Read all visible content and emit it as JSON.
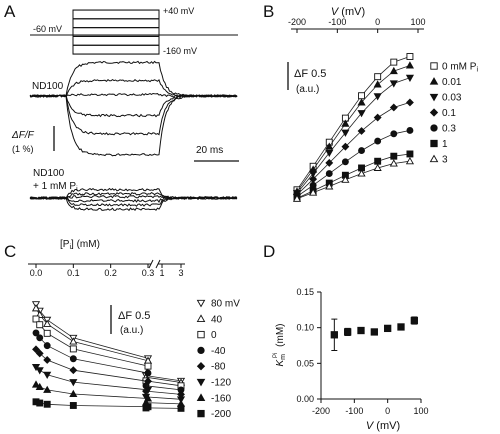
{
  "panel_letters": [
    "A",
    "B",
    "C",
    "D"
  ],
  "panel_a": {
    "protocol": {
      "holding_label": "-60 mV",
      "top_label": "+40 mV",
      "bottom_label": "-160 mV",
      "n_steps": 6
    },
    "trace_labels": {
      "control": "ND100",
      "pi_line1": "ND100",
      "pi_line2": "+ 1 mM P",
      "pi_sub": "i"
    },
    "scale": {
      "yl1": "ΔF/F",
      "yl2": "(1 %)",
      "time": "20 ms"
    },
    "control_levels_pct": [
      1.2,
      0.55,
      0.05,
      -0.7,
      -1.35,
      -2.1
    ],
    "pi_levels_pct": [
      0.3,
      0.15,
      0.05,
      -0.1,
      -0.25,
      -0.4
    ]
  },
  "chart_data": [
    {
      "type": "line",
      "panel": "B",
      "x_axis_label": "V",
      "x_axis_unit": "(mV)",
      "x_ticks": [
        -200,
        -100,
        0,
        100
      ],
      "xlim": [
        -200,
        100
      ],
      "scale_bar": {
        "label": "ΔF 0.5",
        "unit": "(a.u.)",
        "value": 0.5
      },
      "legend_title": "",
      "x": [
        -200,
        -160,
        -120,
        -80,
        -40,
        0,
        40,
        80
      ],
      "series": [
        {
          "name": "0 mM P",
          "sub": "i",
          "marker": "square-open",
          "values": [
            0.2,
            0.62,
            1.05,
            1.48,
            1.88,
            2.22,
            2.48,
            2.58
          ]
        },
        {
          "name": "0.01",
          "marker": "triangle-up",
          "values": [
            0.17,
            0.56,
            0.97,
            1.38,
            1.76,
            2.08,
            2.32,
            2.42
          ]
        },
        {
          "name": "0.03",
          "marker": "triangle-down",
          "values": [
            0.14,
            0.49,
            0.86,
            1.22,
            1.57,
            1.87,
            2.1,
            2.2
          ]
        },
        {
          "name": "0.1",
          "marker": "diamond",
          "values": [
            0.11,
            0.39,
            0.68,
            0.97,
            1.25,
            1.49,
            1.67,
            1.76
          ]
        },
        {
          "name": "0.3",
          "marker": "circle",
          "values": [
            0.08,
            0.28,
            0.49,
            0.7,
            0.9,
            1.07,
            1.2,
            1.26
          ]
        },
        {
          "name": "1",
          "marker": "square",
          "values": [
            0.05,
            0.18,
            0.32,
            0.46,
            0.59,
            0.71,
            0.8,
            0.84
          ]
        },
        {
          "name": "3",
          "marker": "triangle-up-open",
          "values": [
            0.04,
            0.15,
            0.26,
            0.38,
            0.49,
            0.59,
            0.67,
            0.71
          ]
        }
      ]
    },
    {
      "type": "scatter",
      "panel": "C",
      "x_axis_label": "[P",
      "x_axis_sub": "i",
      "x_axis_unit": "] (mM)",
      "x_ticks": [
        "0.0",
        "0.1",
        "0.2",
        "0.3",
        "1",
        "3"
      ],
      "x_break_after": 0.3,
      "scale_bar": {
        "label": "ΔF 0.5",
        "unit": "(a.u.)",
        "value": 0.5
      },
      "x": [
        0,
        0.01,
        0.03,
        0.1,
        0.3,
        1,
        3
      ],
      "series": [
        {
          "name": "80 mV",
          "marker": "triangle-down-open",
          "values": [
            2.58,
            2.42,
            2.2,
            1.76,
            1.26,
            0.84,
            0.71
          ]
        },
        {
          "name": "40",
          "marker": "triangle-up-open",
          "values": [
            2.48,
            2.32,
            2.1,
            1.67,
            1.2,
            0.8,
            0.67
          ]
        },
        {
          "name": "0",
          "marker": "square-open",
          "values": [
            2.22,
            2.08,
            1.87,
            1.49,
            1.07,
            0.71,
            0.59
          ]
        },
        {
          "name": "-40",
          "marker": "circle",
          "values": [
            1.88,
            1.76,
            1.57,
            1.25,
            0.9,
            0.59,
            0.49
          ]
        },
        {
          "name": "-80",
          "marker": "diamond",
          "values": [
            1.48,
            1.38,
            1.22,
            0.97,
            0.7,
            0.46,
            0.38
          ]
        },
        {
          "name": "-120",
          "marker": "triangle-down",
          "values": [
            1.05,
            0.97,
            0.86,
            0.68,
            0.49,
            0.32,
            0.26
          ]
        },
        {
          "name": "-160",
          "marker": "triangle-up",
          "values": [
            0.62,
            0.56,
            0.49,
            0.39,
            0.28,
            0.18,
            0.15
          ]
        },
        {
          "name": "-200",
          "marker": "square",
          "values": [
            0.2,
            0.17,
            0.14,
            0.11,
            0.08,
            0.05,
            0.04
          ]
        }
      ]
    },
    {
      "type": "scatter",
      "panel": "D",
      "x_axis_label": "V",
      "x_axis_unit": "(mV)",
      "y_axis_label": "K",
      "y_axis_sub": "m",
      "y_axis_sup": "Pi",
      "y_axis_unit": "(mM)",
      "x_ticks": [
        -200,
        -100,
        0,
        100
      ],
      "y_ticks": [
        "0.00",
        "0.05",
        "0.10",
        "0.15"
      ],
      "xlim": [
        -200,
        100
      ],
      "ylim": [
        0,
        0.15
      ],
      "x": [
        -160,
        -120,
        -80,
        -40,
        0,
        40,
        80
      ],
      "values": [
        0.09,
        0.094,
        0.096,
        0.094,
        0.099,
        0.101,
        0.11
      ],
      "errors": [
        0.022,
        0.005,
        0.003,
        0.002,
        0.003,
        0.003,
        0.005
      ]
    }
  ]
}
